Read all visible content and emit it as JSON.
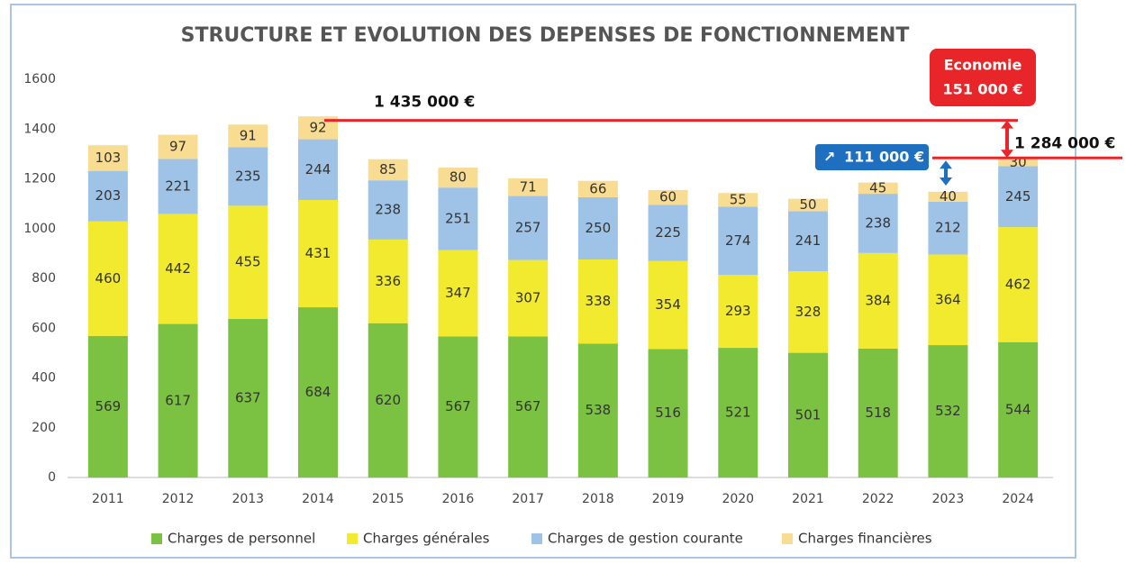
{
  "chart_data": {
    "type": "stacked_bar",
    "title": "STRUCTURE ET EVOLUTION DES DEPENSES DE FONCTIONNEMENT",
    "categories": [
      "2011",
      "2012",
      "2013",
      "2014",
      "2015",
      "2016",
      "2017",
      "2018",
      "2019",
      "2020",
      "2021",
      "2022",
      "2023",
      "2024"
    ],
    "series": [
      {
        "name": "Charges de personnel",
        "color": "#7cc242",
        "values": [
          569,
          617,
          637,
          684,
          620,
          567,
          567,
          538,
          516,
          521,
          501,
          518,
          532,
          544
        ]
      },
      {
        "name": "Charges générales",
        "color": "#f1ea2e",
        "values": [
          460,
          442,
          455,
          431,
          336,
          347,
          307,
          338,
          354,
          293,
          328,
          384,
          364,
          462
        ]
      },
      {
        "name": "Charges de gestion courante",
        "color": "#9fc3e7",
        "values": [
          203,
          221,
          235,
          244,
          238,
          251,
          257,
          250,
          225,
          274,
          241,
          238,
          212,
          245
        ]
      },
      {
        "name": "Charges financières",
        "color": "#f8dc91",
        "values": [
          103,
          97,
          91,
          92,
          85,
          80,
          71,
          66,
          60,
          55,
          50,
          45,
          40,
          30
        ]
      }
    ],
    "ylim": [
      0,
      1600
    ],
    "yticks": [
      0,
      200,
      400,
      600,
      800,
      1000,
      1200,
      1400,
      1600
    ],
    "grid": false,
    "legend": "bottom",
    "reference_lines": [
      {
        "value": 1435,
        "label": "1 435 000 €"
      },
      {
        "value": 1284,
        "label": "1 284 000 €"
      }
    ],
    "callouts": [
      {
        "title": "Economie",
        "value": 151,
        "label": "151 000 €",
        "color": "#e8262a"
      },
      {
        "icon": "↗",
        "value": 111,
        "label": "111 000 €",
        "color": "#1f6fc0"
      }
    ]
  }
}
